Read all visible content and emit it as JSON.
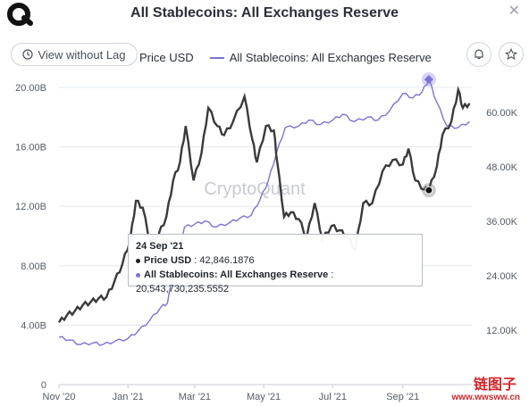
{
  "header": {
    "title": "All Stablecoins: All Exchanges Reserve",
    "lag_button": "View without Lag",
    "legend_price": "Price USD",
    "legend_reserve": "All Stablecoins: All Exchanges Reserve"
  },
  "watermark": "CryptoQuant",
  "tooltip": {
    "date": "24 Sep '21",
    "price_label": "Price USD",
    "price_value": "42,846.1876",
    "reserve_label": "All Stablecoins: All Exchanges Reserve",
    "reserve_value": "20,543,730,235.5552"
  },
  "stamp": {
    "cn": "链图子",
    "url": "www.wwsww.cn"
  },
  "colors": {
    "price": "#3a3a3a",
    "reserve": "#7b72d6",
    "grid": "#e6e8ec"
  },
  "chart_data": {
    "type": "line",
    "x_tick_labels": [
      "Nov '20",
      "Jan '21",
      "Mar '21",
      "May '21",
      "Jul '21",
      "Sep '21"
    ],
    "x_tick_dates": [
      "2020-11-01",
      "2021-01-01",
      "2021-03-01",
      "2021-05-01",
      "2021-07-01",
      "2021-09-01"
    ],
    "left_axis": {
      "ticks": [
        "0",
        "4.00B",
        "8.00B",
        "12.00B",
        "16.00B",
        "20.00B"
      ],
      "range": [
        0,
        20000000000
      ]
    },
    "right_axis": {
      "ticks": [
        "12.00K",
        "24.00K",
        "36.00K",
        "48.00K",
        "60.00K"
      ],
      "range": [
        0,
        65500
      ]
    },
    "grid": true,
    "series": [
      {
        "name": "Price USD",
        "axis": "right",
        "points": [
          [
            "2020-11-01",
            13700
          ],
          [
            "2020-11-08",
            15300
          ],
          [
            "2020-11-15",
            16200
          ],
          [
            "2020-11-22",
            17500
          ],
          [
            "2020-11-29",
            18200
          ],
          [
            "2020-12-06",
            19000
          ],
          [
            "2020-12-13",
            19300
          ],
          [
            "2020-12-20",
            22700
          ],
          [
            "2020-12-27",
            26500
          ],
          [
            "2021-01-03",
            32000
          ],
          [
            "2021-01-08",
            40500
          ],
          [
            "2021-01-14",
            39000
          ],
          [
            "2021-01-21",
            31000
          ],
          [
            "2021-01-28",
            33000
          ],
          [
            "2021-02-04",
            37000
          ],
          [
            "2021-02-10",
            45000
          ],
          [
            "2021-02-16",
            49000
          ],
          [
            "2021-02-21",
            57000
          ],
          [
            "2021-02-28",
            45000
          ],
          [
            "2021-03-07",
            51000
          ],
          [
            "2021-03-13",
            61000
          ],
          [
            "2021-03-21",
            57000
          ],
          [
            "2021-03-27",
            55000
          ],
          [
            "2021-04-04",
            58000
          ],
          [
            "2021-04-14",
            63500
          ],
          [
            "2021-04-21",
            54000
          ],
          [
            "2021-04-25",
            49000
          ],
          [
            "2021-05-03",
            57000
          ],
          [
            "2021-05-10",
            56000
          ],
          [
            "2021-05-13",
            49000
          ],
          [
            "2021-05-19",
            37000
          ],
          [
            "2021-05-25",
            38000
          ],
          [
            "2021-06-01",
            36500
          ],
          [
            "2021-06-08",
            32500
          ],
          [
            "2021-06-15",
            40000
          ],
          [
            "2021-06-22",
            32000
          ],
          [
            "2021-06-30",
            35000
          ],
          [
            "2021-07-07",
            34000
          ],
          [
            "2021-07-14",
            32500
          ],
          [
            "2021-07-21",
            29800
          ],
          [
            "2021-07-28",
            40000
          ],
          [
            "2021-08-05",
            40000
          ],
          [
            "2021-08-14",
            47000
          ],
          [
            "2021-08-23",
            49500
          ],
          [
            "2021-09-01",
            48500
          ],
          [
            "2021-09-06",
            52000
          ],
          [
            "2021-09-12",
            45000
          ],
          [
            "2021-09-20",
            43000
          ],
          [
            "2021-09-24",
            42846
          ],
          [
            "2021-10-01",
            48000
          ],
          [
            "2021-10-06",
            55000
          ],
          [
            "2021-10-14",
            58000
          ],
          [
            "2021-10-20",
            65000
          ],
          [
            "2021-10-24",
            61000
          ],
          [
            "2021-10-30",
            62000
          ]
        ]
      },
      {
        "name": "All Stablecoins: All Exchanges Reserve",
        "axis": "left",
        "points": [
          [
            "2020-11-01",
            3200000000
          ],
          [
            "2020-11-10",
            3000000000
          ],
          [
            "2020-11-20",
            2700000000
          ],
          [
            "2020-12-01",
            2800000000
          ],
          [
            "2020-12-10",
            2700000000
          ],
          [
            "2020-12-20",
            2900000000
          ],
          [
            "2021-01-01",
            3100000000
          ],
          [
            "2021-01-10",
            3600000000
          ],
          [
            "2021-01-20",
            4300000000
          ],
          [
            "2021-01-30",
            5200000000
          ],
          [
            "2021-02-05",
            5500000000
          ],
          [
            "2021-02-10",
            7600000000
          ],
          [
            "2021-02-20",
            10600000000
          ],
          [
            "2021-03-01",
            10800000000
          ],
          [
            "2021-03-10",
            11000000000
          ],
          [
            "2021-03-20",
            10600000000
          ],
          [
            "2021-04-01",
            10900000000
          ],
          [
            "2021-04-10",
            11200000000
          ],
          [
            "2021-04-20",
            11400000000
          ],
          [
            "2021-04-28",
            12500000000
          ],
          [
            "2021-05-05",
            13700000000
          ],
          [
            "2021-05-12",
            15500000000
          ],
          [
            "2021-05-20",
            17300000000
          ],
          [
            "2021-06-01",
            17400000000
          ],
          [
            "2021-06-10",
            17800000000
          ],
          [
            "2021-06-20",
            17500000000
          ],
          [
            "2021-07-01",
            17800000000
          ],
          [
            "2021-07-10",
            18200000000
          ],
          [
            "2021-07-20",
            17700000000
          ],
          [
            "2021-08-01",
            18000000000
          ],
          [
            "2021-08-10",
            17800000000
          ],
          [
            "2021-08-20",
            18400000000
          ],
          [
            "2021-09-01",
            19600000000
          ],
          [
            "2021-09-10",
            19300000000
          ],
          [
            "2021-09-18",
            19700000000
          ],
          [
            "2021-09-24",
            20543730235
          ],
          [
            "2021-10-01",
            19000000000
          ],
          [
            "2021-10-10",
            17400000000
          ],
          [
            "2021-10-20",
            17300000000
          ],
          [
            "2021-10-30",
            17700000000
          ]
        ]
      }
    ],
    "highlight": {
      "date": "2021-09-24",
      "price": 42846.1876,
      "reserve": 20543730235.5552
    }
  }
}
